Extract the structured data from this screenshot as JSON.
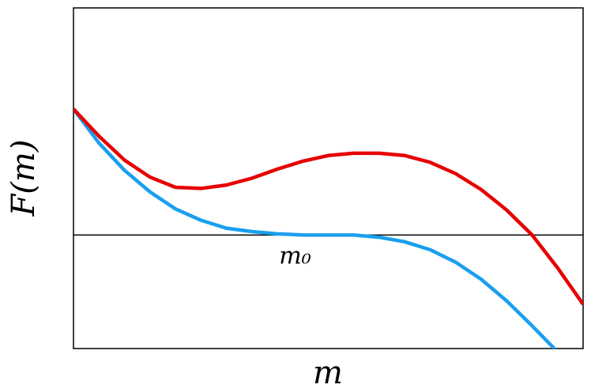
{
  "chart_data": {
    "type": "line",
    "xlabel": "m",
    "ylabel": "F(m)",
    "x": [
      0,
      0.05,
      0.1,
      0.15,
      0.2,
      0.25,
      0.3,
      0.35,
      0.4,
      0.45,
      0.5,
      0.55,
      0.6,
      0.65,
      0.7,
      0.75,
      0.8,
      0.85,
      0.9,
      0.95,
      1
    ],
    "series": [
      {
        "color": "#1a9fef",
        "values": [
          1.11,
          0.81,
          0.57,
          0.38,
          0.23,
          0.13,
          0.06,
          0.03,
          0.01,
          0.0,
          0.0,
          0.0,
          -0.02,
          -0.06,
          -0.13,
          -0.24,
          -0.39,
          -0.58,
          -0.8,
          -1.03,
          null
        ]
      },
      {
        "color": "#e60000",
        "values": [
          1.11,
          0.87,
          0.66,
          0.51,
          0.42,
          0.41,
          0.44,
          0.5,
          0.58,
          0.65,
          0.7,
          0.72,
          0.72,
          0.7,
          0.64,
          0.54,
          0.4,
          0.22,
          0.0,
          -0.29,
          -0.61
        ]
      }
    ],
    "hline": 0,
    "annotation": {
      "text": "m₀",
      "x": 0.45
    },
    "xlim": [
      0,
      1
    ],
    "ylim": [
      -1,
      2
    ]
  }
}
